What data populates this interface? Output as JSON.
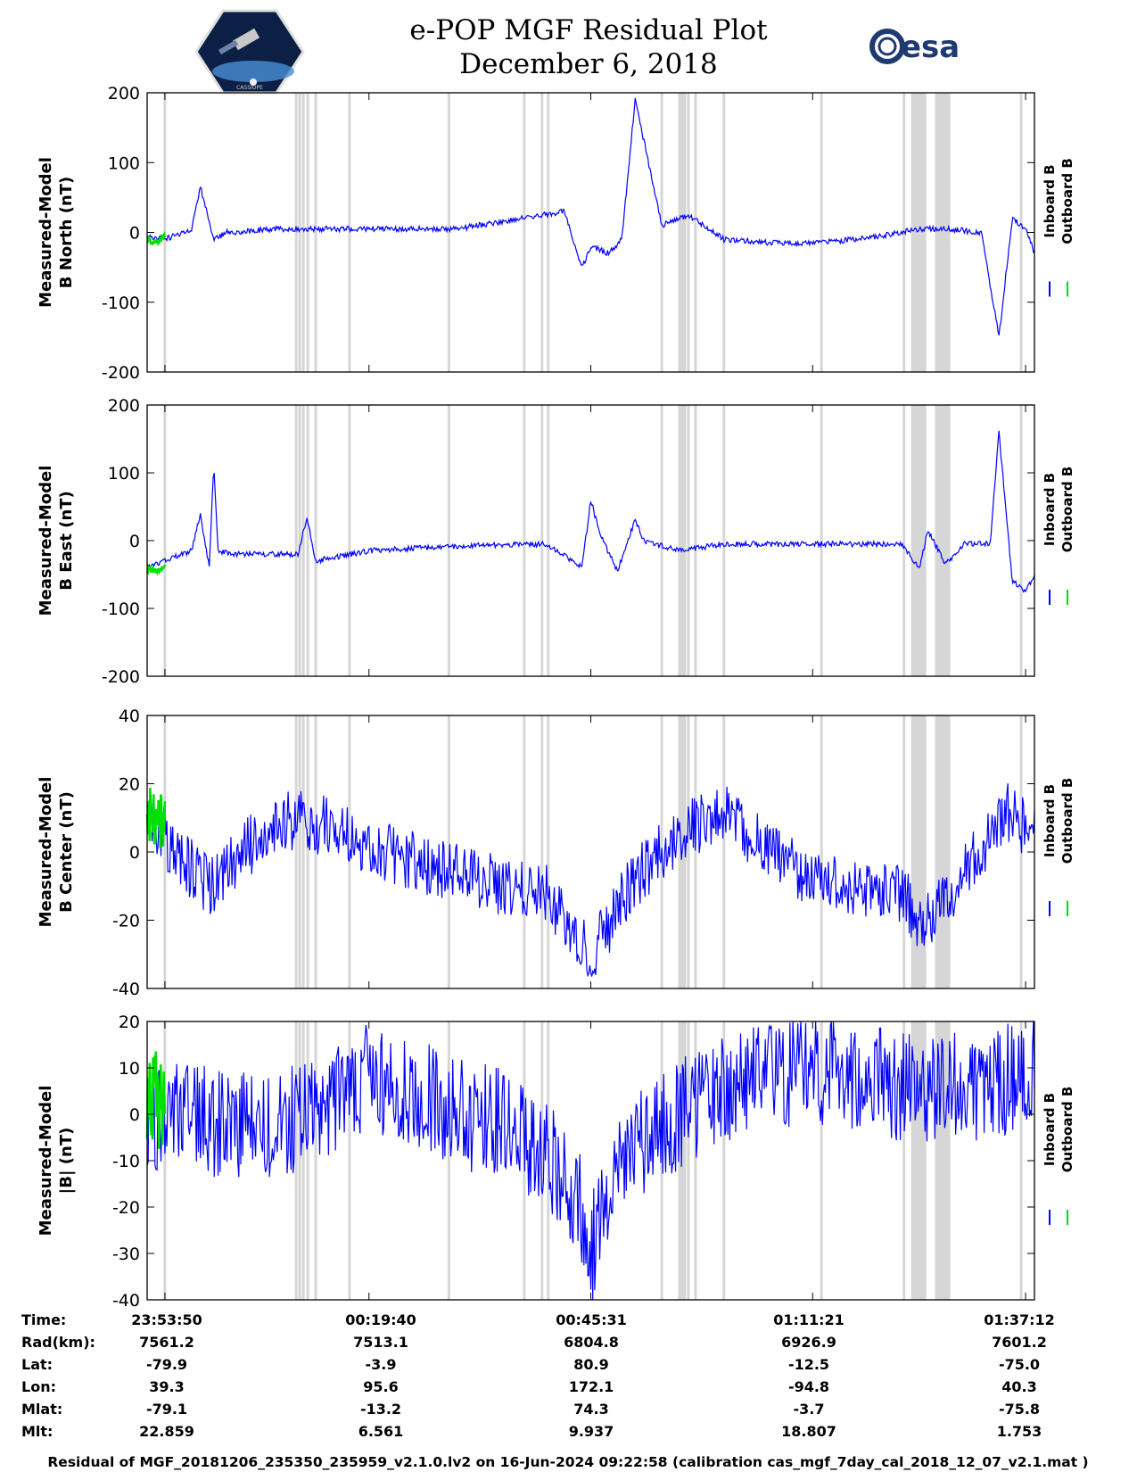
{
  "header": {
    "title_line1": "e-POP MGF Residual Plot",
    "title_line2": "December 6, 2018",
    "left_logo": "CASSIOPE",
    "right_logo": "esa"
  },
  "legend": {
    "inboard": "Inboard B",
    "outboard": "Outboard B"
  },
  "colors": {
    "inboard": "#0000ff",
    "outboard": "#00e000",
    "gap": "#d6d6d6"
  },
  "chart_data": [
    {
      "type": "line",
      "ylabel_lines": [
        "Measured-Model",
        "B North (nT)"
      ],
      "ylim": [
        -200,
        200
      ],
      "yticks": [
        "200",
        "100",
        "0",
        "-100",
        "-200"
      ],
      "series": [
        {
          "name": "Inboard B",
          "x": [
            0,
            0.02,
            0.05,
            0.06,
            0.075,
            0.09,
            0.15,
            0.25,
            0.35,
            0.42,
            0.47,
            0.49,
            0.5,
            0.52,
            0.535,
            0.55,
            0.58,
            0.61,
            0.65,
            0.7,
            0.75,
            0.8,
            0.85,
            0.87,
            0.9,
            0.94,
            0.96,
            0.975,
            0.99,
            1.0
          ],
          "values": [
            -5,
            -10,
            5,
            65,
            -10,
            0,
            5,
            5,
            5,
            20,
            30,
            -50,
            -20,
            -30,
            -10,
            190,
            10,
            25,
            -10,
            -15,
            -15,
            -10,
            0,
            5,
            5,
            0,
            -150,
            20,
            5,
            -30
          ]
        },
        {
          "name": "Outboard B",
          "x": [
            0,
            0.01,
            0.02
          ],
          "values": [
            -10,
            -15,
            -5
          ]
        }
      ]
    },
    {
      "type": "line",
      "ylabel_lines": [
        "Measured-Model",
        "B East (nT)"
      ],
      "ylim": [
        -200,
        200
      ],
      "yticks": [
        "200",
        "100",
        "0",
        "-100",
        "-200"
      ],
      "series": [
        {
          "name": "Inboard B",
          "x": [
            0,
            0.05,
            0.06,
            0.07,
            0.075,
            0.08,
            0.095,
            0.17,
            0.18,
            0.19,
            0.25,
            0.35,
            0.45,
            0.49,
            0.5,
            0.51,
            0.53,
            0.55,
            0.56,
            0.6,
            0.65,
            0.7,
            0.75,
            0.85,
            0.87,
            0.88,
            0.9,
            0.92,
            0.95,
            0.96,
            0.975,
            0.99,
            1.0
          ],
          "values": [
            -40,
            -15,
            40,
            -40,
            110,
            -15,
            -20,
            -20,
            35,
            -30,
            -15,
            -8,
            -5,
            -40,
            60,
            10,
            -45,
            30,
            0,
            -15,
            -5,
            -5,
            -5,
            -5,
            -40,
            15,
            -35,
            -5,
            -5,
            160,
            -60,
            -75,
            -50
          ]
        },
        {
          "name": "Outboard B",
          "x": [
            0,
            0.01,
            0.02
          ],
          "values": [
            -42,
            -45,
            -38
          ]
        }
      ]
    },
    {
      "type": "line",
      "ylabel_lines": [
        "Measured-Model",
        "B Center (nT)"
      ],
      "ylim": [
        -40,
        40
      ],
      "yticks": [
        "40",
        "20",
        "0",
        "-20",
        "-40"
      ],
      "series": [
        {
          "name": "Inboard B",
          "x": [
            0,
            0.05,
            0.07,
            0.1,
            0.15,
            0.2,
            0.25,
            0.3,
            0.35,
            0.4,
            0.45,
            0.5,
            0.55,
            0.6,
            0.65,
            0.7,
            0.75,
            0.8,
            0.85,
            0.87,
            0.9,
            0.95,
            0.97,
            1.0
          ],
          "values": [
            10,
            -5,
            -10,
            -2,
            10,
            8,
            2,
            -3,
            -6,
            -10,
            -12,
            -30,
            -8,
            5,
            13,
            0,
            -8,
            -10,
            -12,
            -20,
            -15,
            5,
            12,
            5
          ]
        },
        {
          "name": "Outboard B",
          "x": [
            0,
            0.01,
            0.02
          ],
          "values": [
            12,
            8,
            10
          ]
        }
      ]
    },
    {
      "type": "line",
      "ylabel_lines": [
        "Measured-Model",
        "|B| (nT)"
      ],
      "ylim": [
        -40,
        20
      ],
      "yticks": [
        "20",
        "10",
        "0",
        "-10",
        "-20",
        "-30",
        "-40"
      ],
      "series": [
        {
          "name": "Inboard B",
          "x": [
            0,
            0.05,
            0.1,
            0.15,
            0.2,
            0.25,
            0.3,
            0.35,
            0.4,
            0.45,
            0.49,
            0.5,
            0.53,
            0.57,
            0.6,
            0.65,
            0.7,
            0.75,
            0.8,
            0.85,
            0.9,
            0.95,
            1.0
          ],
          "values": [
            0,
            -1,
            -3,
            -2,
            2,
            8,
            5,
            0,
            -2,
            -8,
            -20,
            -30,
            -10,
            -5,
            0,
            5,
            8,
            10,
            8,
            6,
            6,
            5,
            12
          ]
        },
        {
          "name": "Outboard B",
          "x": [
            0,
            0.01,
            0.02
          ],
          "values": [
            0,
            2,
            -2
          ]
        }
      ]
    }
  ],
  "info_table": {
    "row_labels": [
      "Time:",
      "Rad(km):",
      "Lat:",
      "Lon:",
      "Mlat:",
      "Mlt:"
    ],
    "columns": [
      [
        "23:53:50",
        "7561.2",
        "-79.9",
        "39.3",
        "-79.1",
        "22.859"
      ],
      [
        "00:19:40",
        "7513.1",
        "-3.9",
        "95.6",
        "-13.2",
        "6.561"
      ],
      [
        "00:45:31",
        "6804.8",
        "80.9",
        "172.1",
        "74.3",
        "9.937"
      ],
      [
        "01:11:21",
        "6926.9",
        "-12.5",
        "-94.8",
        "-3.7",
        "18.807"
      ],
      [
        "01:37:12",
        "7601.2",
        "-75.0",
        "40.3",
        "-75.8",
        "1.753"
      ]
    ]
  },
  "footer": "Residual of MGF_20181206_235350_235959_v2.1.0.lv2 on 16-Jun-2024 09:22:58 (calibration cas_mgf_7day_cal_2018_12_07_v2.1.mat )"
}
